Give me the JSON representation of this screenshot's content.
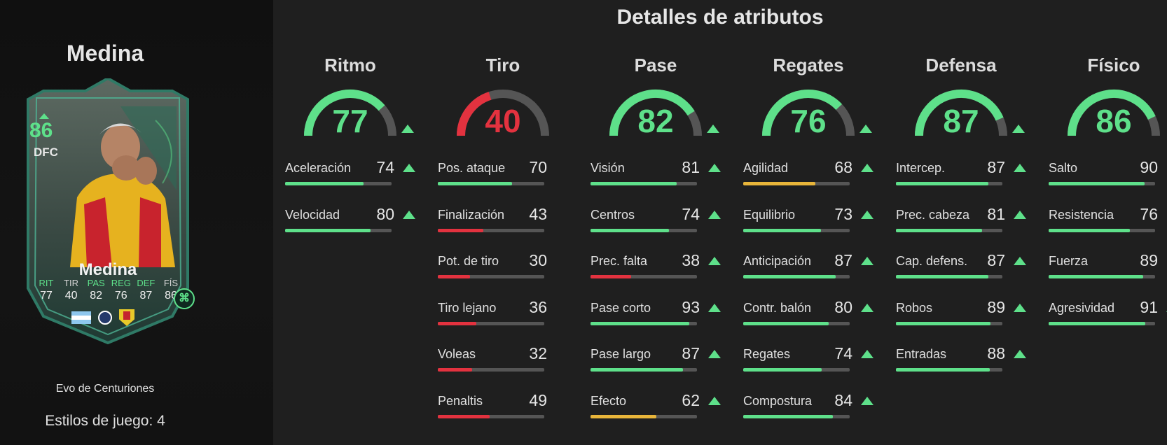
{
  "player": {
    "name": "Medina",
    "card": {
      "rating": "86",
      "position": "DFC",
      "name": "Medina",
      "stats": [
        {
          "label": "RIT",
          "value": "77",
          "upgraded": true
        },
        {
          "label": "TIR",
          "value": "40",
          "upgraded": false
        },
        {
          "label": "PAS",
          "value": "82",
          "upgraded": true
        },
        {
          "label": "REG",
          "value": "76",
          "upgraded": true
        },
        {
          "label": "DEF",
          "value": "87",
          "upgraded": true
        },
        {
          "label": "FÍS",
          "value": "86",
          "upgraded": false
        }
      ]
    },
    "evo_label": "Evo de Centuriones",
    "playstyles": "Estilos de juego: 4"
  },
  "title": "Detalles de atributos",
  "colors": {
    "high": "#5ee08a",
    "mid": "#e8b53a",
    "low": "#e3323f",
    "track": "#555555"
  },
  "categories": [
    {
      "name": "Ritmo",
      "value": 77,
      "upgraded": true,
      "attributes": [
        {
          "name": "Aceleración",
          "value": 74,
          "upgraded": true
        },
        {
          "name": "Velocidad",
          "value": 80,
          "upgraded": true
        }
      ]
    },
    {
      "name": "Tiro",
      "value": 40,
      "upgraded": false,
      "attributes": [
        {
          "name": "Pos. ataque",
          "value": 70,
          "upgraded": false
        },
        {
          "name": "Finalización",
          "value": 43,
          "upgraded": false
        },
        {
          "name": "Pot. de tiro",
          "value": 30,
          "upgraded": false
        },
        {
          "name": "Tiro lejano",
          "value": 36,
          "upgraded": false
        },
        {
          "name": "Voleas",
          "value": 32,
          "upgraded": false
        },
        {
          "name": "Penaltis",
          "value": 49,
          "upgraded": false
        }
      ]
    },
    {
      "name": "Pase",
      "value": 82,
      "upgraded": true,
      "attributes": [
        {
          "name": "Visión",
          "value": 81,
          "upgraded": true
        },
        {
          "name": "Centros",
          "value": 74,
          "upgraded": true
        },
        {
          "name": "Prec. falta",
          "value": 38,
          "upgraded": true
        },
        {
          "name": "Pase corto",
          "value": 93,
          "upgraded": true
        },
        {
          "name": "Pase largo",
          "value": 87,
          "upgraded": true
        },
        {
          "name": "Efecto",
          "value": 62,
          "upgraded": true
        }
      ]
    },
    {
      "name": "Regates",
      "value": 76,
      "upgraded": true,
      "attributes": [
        {
          "name": "Agilidad",
          "value": 68,
          "upgraded": true
        },
        {
          "name": "Equilibrio",
          "value": 73,
          "upgraded": true
        },
        {
          "name": "Anticipación",
          "value": 87,
          "upgraded": true
        },
        {
          "name": "Contr. balón",
          "value": 80,
          "upgraded": true
        },
        {
          "name": "Regates",
          "value": 74,
          "upgraded": true
        },
        {
          "name": "Compostura",
          "value": 84,
          "upgraded": true
        }
      ]
    },
    {
      "name": "Defensa",
      "value": 87,
      "upgraded": true,
      "attributes": [
        {
          "name": "Intercep.",
          "value": 87,
          "upgraded": true
        },
        {
          "name": "Prec. cabeza",
          "value": 81,
          "upgraded": true
        },
        {
          "name": "Cap. defens.",
          "value": 87,
          "upgraded": true
        },
        {
          "name": "Robos",
          "value": 89,
          "upgraded": true
        },
        {
          "name": "Entradas",
          "value": 88,
          "upgraded": true
        }
      ]
    },
    {
      "name": "Físico",
      "value": 86,
      "upgraded": false,
      "attributes": [
        {
          "name": "Salto",
          "value": 90,
          "upgraded": false
        },
        {
          "name": "Resistencia",
          "value": 76,
          "upgraded": false
        },
        {
          "name": "Fuerza",
          "value": 89,
          "upgraded": false
        },
        {
          "name": "Agresividad",
          "value": 91,
          "upgraded": true
        }
      ]
    }
  ]
}
